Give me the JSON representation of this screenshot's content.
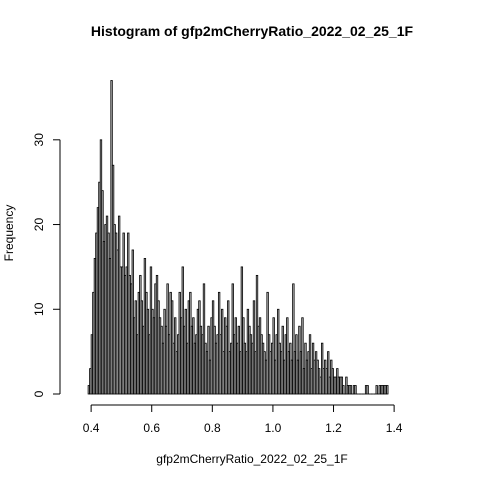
{
  "chart_data": {
    "type": "bar",
    "title": "Histogram of gfp2mCherryRatio_2022_02_25_1F",
    "xlabel": "gfp2mCherryRatio_2022_02_25_1F",
    "ylabel": "Frequency",
    "xlim": [
      0.36,
      1.56
    ],
    "ylim": [
      0,
      37
    ],
    "x_ticks": [
      "0.4",
      "0.6",
      "0.8",
      "1.0",
      "1.2",
      "1.4"
    ],
    "x_tick_values": [
      0.4,
      0.6,
      0.8,
      1.0,
      1.2,
      1.4
    ],
    "y_ticks": [
      "0",
      "10",
      "20",
      "30"
    ],
    "y_tick_values": [
      0,
      10,
      20,
      30
    ],
    "bin_width": 0.005,
    "bin_start": 0.39,
    "counts": [
      1,
      3,
      7,
      12,
      16,
      19,
      22,
      25,
      30,
      24,
      18,
      20,
      21,
      19,
      16,
      37,
      27,
      20,
      19,
      17,
      21,
      15,
      15,
      19,
      14,
      15,
      19,
      14,
      13,
      17,
      9,
      11,
      7,
      12,
      14,
      11,
      8,
      16,
      12,
      10,
      7,
      15,
      10,
      9,
      13,
      14,
      11,
      9,
      8,
      6,
      10,
      8,
      13,
      7,
      12,
      11,
      6,
      9,
      5,
      7,
      12,
      9,
      15,
      8,
      10,
      6,
      11,
      12,
      8,
      9,
      6,
      7,
      10,
      11,
      8,
      7,
      13,
      6,
      5,
      8,
      4,
      9,
      11,
      8,
      6,
      7,
      12,
      7,
      10,
      5,
      9,
      8,
      11,
      5,
      6,
      13,
      7,
      9,
      6,
      8,
      5,
      15,
      9,
      6,
      5,
      10,
      8,
      7,
      6,
      11,
      5,
      14,
      8,
      9,
      7,
      6,
      5,
      4,
      12,
      7,
      5,
      6,
      9,
      4,
      7,
      10,
      6,
      5,
      8,
      4,
      7,
      9,
      5,
      6,
      4,
      13,
      5,
      7,
      4,
      8,
      5,
      9,
      3,
      6,
      4,
      5,
      7,
      3,
      6,
      4,
      5,
      4,
      3,
      2,
      6,
      3,
      4,
      3,
      5,
      2,
      4,
      3,
      2,
      2,
      3,
      2,
      2,
      2,
      1,
      0,
      2,
      1,
      1,
      1,
      0,
      1,
      1,
      0,
      0,
      0,
      0,
      0,
      0,
      1,
      1,
      0,
      0,
      0,
      0,
      0,
      1,
      0,
      1,
      1,
      1,
      1,
      1,
      1
    ],
    "grid": false,
    "legend": "none"
  }
}
